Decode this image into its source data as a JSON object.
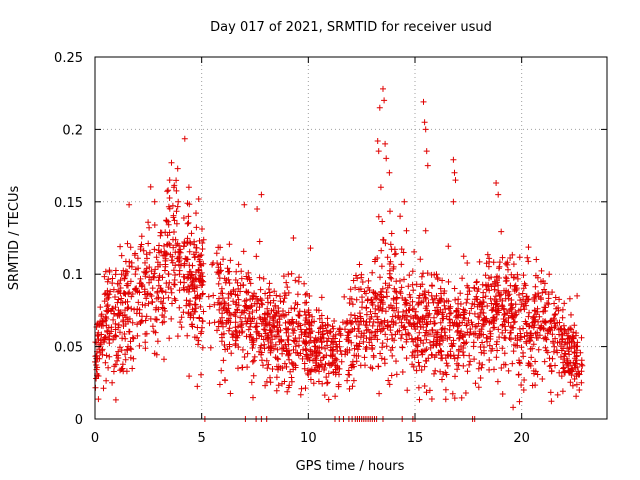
{
  "chart_data": {
    "type": "scatter",
    "title": "Day 017 of 2021, SRMTID for receiver usud",
    "xlabel": "GPS time / hours",
    "ylabel": "SRMTID / TECUs",
    "xlim": [
      0,
      24
    ],
    "ylim": [
      0,
      0.25
    ],
    "xticks": [
      0,
      5,
      10,
      15,
      20
    ],
    "xtick_labels": [
      "0",
      "5",
      "10",
      "15",
      "20"
    ],
    "yticks": [
      0,
      0.05,
      0.1,
      0.15,
      0.2,
      0.25
    ],
    "ytick_labels": [
      "0",
      "0.05",
      "0.1",
      "0.15",
      "0.2",
      "0.25"
    ],
    "grid": true,
    "marker": "+",
    "color": "#e00000",
    "generated_density": {
      "x_start": 0.0,
      "x_end": 22.85,
      "points_per_hour": 110,
      "seed": 17,
      "envelope": [
        {
          "x": 0.0,
          "y": 0.045,
          "spread": 0.012
        },
        {
          "x": 0.5,
          "y": 0.065,
          "spread": 0.02
        },
        {
          "x": 1.0,
          "y": 0.07,
          "spread": 0.02
        },
        {
          "x": 2.0,
          "y": 0.085,
          "spread": 0.022
        },
        {
          "x": 3.0,
          "y": 0.095,
          "spread": 0.025
        },
        {
          "x": 3.5,
          "y": 0.115,
          "spread": 0.028
        },
        {
          "x": 4.5,
          "y": 0.095,
          "spread": 0.025
        },
        {
          "x": 5.5,
          "y": 0.08,
          "spread": 0.022
        },
        {
          "x": 6.5,
          "y": 0.07,
          "spread": 0.02
        },
        {
          "x": 7.5,
          "y": 0.07,
          "spread": 0.02
        },
        {
          "x": 8.5,
          "y": 0.055,
          "spread": 0.018
        },
        {
          "x": 9.5,
          "y": 0.06,
          "spread": 0.018
        },
        {
          "x": 10.5,
          "y": 0.05,
          "spread": 0.014
        },
        {
          "x": 11.0,
          "y": 0.045,
          "spread": 0.012
        },
        {
          "x": 12.0,
          "y": 0.06,
          "spread": 0.016
        },
        {
          "x": 13.0,
          "y": 0.07,
          "spread": 0.02
        },
        {
          "x": 13.5,
          "y": 0.085,
          "spread": 0.025
        },
        {
          "x": 14.5,
          "y": 0.07,
          "spread": 0.02
        },
        {
          "x": 15.5,
          "y": 0.065,
          "spread": 0.02
        },
        {
          "x": 16.5,
          "y": 0.06,
          "spread": 0.02
        },
        {
          "x": 17.5,
          "y": 0.06,
          "spread": 0.02
        },
        {
          "x": 18.5,
          "y": 0.075,
          "spread": 0.022
        },
        {
          "x": 19.5,
          "y": 0.07,
          "spread": 0.022
        },
        {
          "x": 20.5,
          "y": 0.065,
          "spread": 0.02
        },
        {
          "x": 21.5,
          "y": 0.06,
          "spread": 0.018
        },
        {
          "x": 22.5,
          "y": 0.04,
          "spread": 0.012
        },
        {
          "x": 22.85,
          "y": 0.035,
          "spread": 0.01
        }
      ],
      "gaps": [
        [
          5.1,
          5.7
        ],
        [
          11.5,
          11.8
        ]
      ]
    },
    "outliers": [
      {
        "x": 3.5,
        "y": 0.165
      },
      {
        "x": 3.7,
        "y": 0.16
      },
      {
        "x": 3.9,
        "y": 0.15
      },
      {
        "x": 4.4,
        "y": 0.16
      },
      {
        "x": 2.8,
        "y": 0.15
      },
      {
        "x": 1.6,
        "y": 0.148
      },
      {
        "x": 7.0,
        "y": 0.148
      },
      {
        "x": 7.8,
        "y": 0.155
      },
      {
        "x": 7.6,
        "y": 0.145
      },
      {
        "x": 9.3,
        "y": 0.125
      },
      {
        "x": 10.1,
        "y": 0.118
      },
      {
        "x": 13.25,
        "y": 0.192
      },
      {
        "x": 13.3,
        "y": 0.185
      },
      {
        "x": 13.35,
        "y": 0.215
      },
      {
        "x": 13.5,
        "y": 0.228
      },
      {
        "x": 13.55,
        "y": 0.22
      },
      {
        "x": 13.6,
        "y": 0.19
      },
      {
        "x": 13.65,
        "y": 0.18
      },
      {
        "x": 13.4,
        "y": 0.16
      },
      {
        "x": 13.8,
        "y": 0.17
      },
      {
        "x": 15.4,
        "y": 0.219
      },
      {
        "x": 15.45,
        "y": 0.205
      },
      {
        "x": 15.5,
        "y": 0.2
      },
      {
        "x": 15.55,
        "y": 0.185
      },
      {
        "x": 15.6,
        "y": 0.175
      },
      {
        "x": 15.5,
        "y": 0.13
      },
      {
        "x": 16.8,
        "y": 0.179
      },
      {
        "x": 16.85,
        "y": 0.17
      },
      {
        "x": 16.9,
        "y": 0.165
      },
      {
        "x": 16.8,
        "y": 0.15
      },
      {
        "x": 18.8,
        "y": 0.163
      },
      {
        "x": 18.9,
        "y": 0.155
      },
      {
        "x": 14.5,
        "y": 0.15
      },
      {
        "x": 14.6,
        "y": 0.13
      },
      {
        "x": 14.3,
        "y": 0.14
      },
      {
        "x": 19.6,
        "y": 0.008
      },
      {
        "x": 19.9,
        "y": 0.012
      },
      {
        "x": 20.1,
        "y": 0.02
      },
      {
        "x": 0.05,
        "y": 0.028
      },
      {
        "x": 0.1,
        "y": 0.03
      },
      {
        "x": 0.8,
        "y": 0.025
      },
      {
        "x": 22.7,
        "y": 0.02
      },
      {
        "x": 22.8,
        "y": 0.025
      },
      {
        "x": 22.6,
        "y": 0.085
      }
    ],
    "zero_points_x": [
      5.15,
      7.05,
      7.55,
      7.8,
      8.05,
      11.25,
      11.45,
      11.65,
      11.9,
      12.05,
      12.2,
      12.3,
      12.4,
      12.5,
      12.6,
      12.7,
      12.8,
      12.9,
      13.0,
      13.1,
      13.2,
      13.5,
      14.4,
      14.9,
      15.0,
      17.7,
      17.8
    ]
  }
}
